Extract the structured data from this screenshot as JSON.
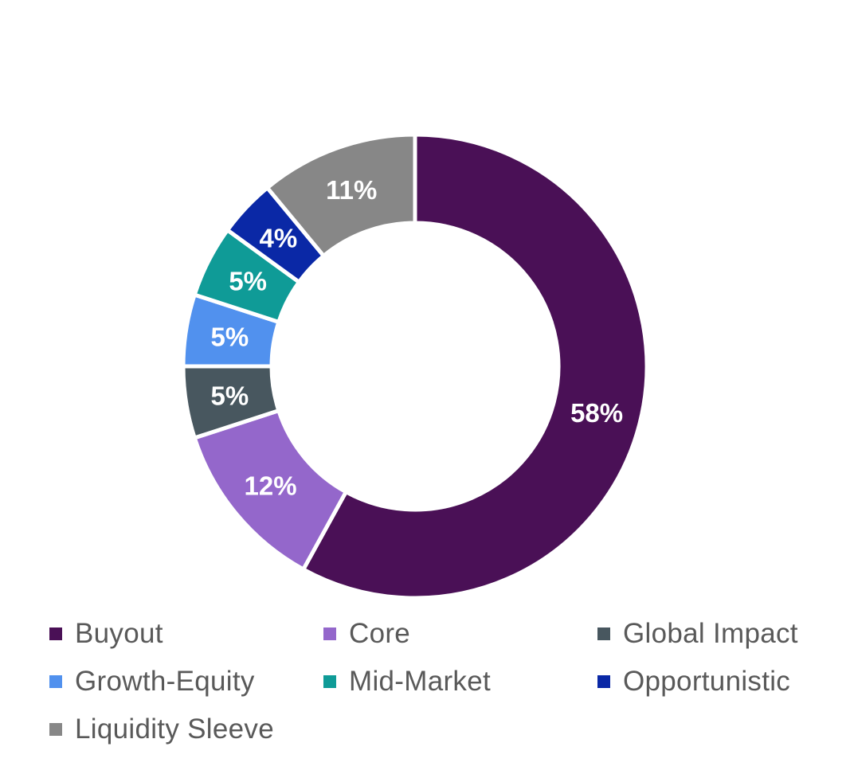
{
  "chart_data": {
    "type": "pie",
    "variant": "donut",
    "title": "",
    "categories": [
      "Buyout",
      "Core",
      "Global Impact",
      "Growth-Equity",
      "Mid-Market",
      "Opportunistic",
      "Liquidity Sleeve"
    ],
    "values": [
      58,
      12,
      5,
      5,
      5,
      4,
      11
    ],
    "data_labels": [
      "58%",
      "12%",
      "5%",
      "5%",
      "5%",
      "4%",
      "11%"
    ],
    "colors": [
      "#4a1056",
      "#9467cb",
      "#48575f",
      "#5191ee",
      "#0f9b97",
      "#0a28a6",
      "#878787"
    ],
    "unit": "%",
    "legend_position": "bottom",
    "start_angle": "12 o'clock",
    "direction": "clockwise"
  }
}
